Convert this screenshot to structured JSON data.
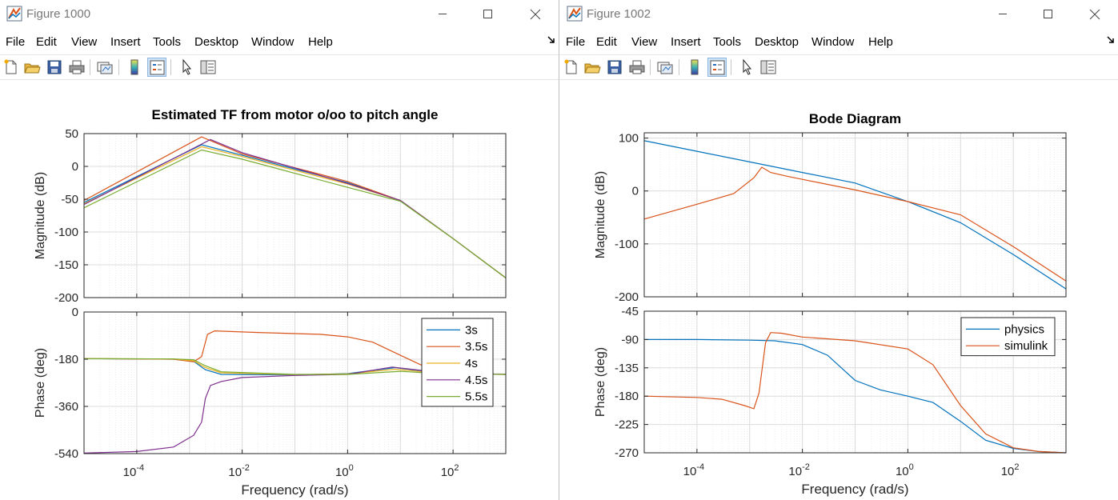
{
  "windows": [
    {
      "title": "Figure 1000",
      "menu": [
        "File",
        "Edit",
        "View",
        "Insert",
        "Tools",
        "Desktop",
        "Window",
        "Help"
      ],
      "toolbar": [
        "new-figure",
        "open-file",
        "save",
        "print",
        "link-plot",
        "insert-colorbar",
        "insert-legend",
        "edit-plot",
        "property-inspector"
      ]
    },
    {
      "title": "Figure 1002",
      "menu": [
        "File",
        "Edit",
        "View",
        "Insert",
        "Tools",
        "Desktop",
        "Window",
        "Help"
      ],
      "toolbar": [
        "new-figure",
        "open-file",
        "save",
        "print",
        "link-plot",
        "insert-colorbar",
        "insert-legend",
        "edit-plot",
        "property-inspector"
      ]
    }
  ],
  "colors": {
    "series": [
      "#0072BD",
      "#D95319",
      "#EDB120",
      "#7E2F8E",
      "#77AC30"
    ],
    "window_text": "#777777",
    "grid": "#e0e0e0"
  },
  "chart_data": [
    {
      "type": "line",
      "title": "Estimated TF from motor o/oo to pitch angle",
      "xlabel": "Frequency  (rad/s)",
      "xscale": "log",
      "xlim": [
        1e-05,
        1000
      ],
      "xticks": [
        0.0001,
        0.01,
        1,
        100
      ],
      "xtick_labels": [
        {
          "b": "10",
          "e": "-4"
        },
        {
          "b": "10",
          "e": "-2"
        },
        {
          "b": "10",
          "e": "0"
        },
        {
          "b": "10",
          "e": "2"
        }
      ],
      "grid": "minor",
      "legend": {
        "panel": "phase",
        "location": "top-right",
        "entries": [
          "3s",
          "3.5s",
          "4s",
          "4.5s",
          "5.5s"
        ]
      },
      "panels": [
        {
          "name": "magnitude",
          "ylabel": "Magnitude (dB)",
          "ylim": [
            -200,
            50
          ],
          "yticks": [
            50,
            0,
            -50,
            -100,
            -150,
            -200
          ],
          "series": [
            {
              "name": "3s",
              "x": [
                1e-05,
                0.0017,
                0.01,
                1,
                10,
                100,
                1000
              ],
              "y": [
                -55,
                33,
                17,
                -25,
                -52,
                -110,
                -170
              ]
            },
            {
              "name": "3.5s",
              "x": [
                1e-05,
                0.0017,
                0.01,
                1,
                10,
                100,
                1000
              ],
              "y": [
                -52,
                45,
                19,
                -23,
                -52,
                -110,
                -170
              ]
            },
            {
              "name": "4s",
              "x": [
                1e-05,
                0.0017,
                0.01,
                1,
                10,
                100,
                1000
              ],
              "y": [
                -57,
                30,
                15,
                -27,
                -52,
                -110,
                -170
              ]
            },
            {
              "name": "4.5s",
              "x": [
                1e-05,
                0.0025,
                0.01,
                1,
                10,
                100,
                1000
              ],
              "y": [
                -58,
                41,
                21,
                -26,
                -52,
                -110,
                -170
              ]
            },
            {
              "name": "5.5s",
              "x": [
                1e-05,
                0.0017,
                0.01,
                1,
                10,
                100,
                1000
              ],
              "y": [
                -63,
                25,
                11,
                -32,
                -53,
                -110,
                -170
              ]
            }
          ]
        },
        {
          "name": "phase",
          "ylabel": "Phase (deg)",
          "ylim": [
            -540,
            0
          ],
          "yticks": [
            0,
            -180,
            -360,
            -540
          ],
          "series": [
            {
              "name": "3s",
              "x": [
                1e-05,
                0.0005,
                0.0012,
                0.002,
                0.004,
                0.1,
                1,
                8,
                50,
                1000
              ],
              "y": [
                -178,
                -180,
                -188,
                -220,
                -238,
                -240,
                -235,
                -212,
                -232,
                -238
              ]
            },
            {
              "name": "3.5s",
              "x": [
                1e-05,
                0.0005,
                0.0012,
                0.0017,
                0.0022,
                0.003,
                0.02,
                0.3,
                1,
                3,
                10,
                30,
                100,
                1000
              ],
              "y": [
                -178,
                -180,
                -190,
                -170,
                -85,
                -72,
                -78,
                -85,
                -95,
                -115,
                -165,
                -210,
                -236,
                -238
              ]
            },
            {
              "name": "4s",
              "x": [
                1e-05,
                0.0005,
                0.0012,
                0.002,
                0.004,
                0.1,
                1,
                8,
                50,
                1000
              ],
              "y": [
                -178,
                -179,
                -186,
                -212,
                -232,
                -239,
                -236,
                -218,
                -233,
                -238
              ]
            },
            {
              "name": "4.5s",
              "x": [
                1e-05,
                0.0001,
                0.0005,
                0.0012,
                0.0017,
                0.002,
                0.0025,
                0.004,
                0.01,
                0.1,
                1,
                7,
                50,
                1000
              ],
              "y": [
                -538,
                -532,
                -515,
                -470,
                -420,
                -330,
                -280,
                -265,
                -250,
                -242,
                -238,
                -210,
                -230,
                -238
              ]
            },
            {
              "name": "5.5s",
              "x": [
                1e-05,
                0.0005,
                0.0012,
                0.002,
                0.004,
                0.1,
                1,
                10,
                50,
                1000
              ],
              "y": [
                -178,
                -179,
                -182,
                -205,
                -228,
                -238,
                -238,
                -226,
                -235,
                -238
              ]
            }
          ]
        }
      ]
    },
    {
      "type": "line",
      "title": "Bode Diagram",
      "xlabel": "Frequency  (rad/s)",
      "xscale": "log",
      "xlim": [
        1e-05,
        1000
      ],
      "xticks": [
        0.0001,
        0.01,
        1,
        100
      ],
      "xtick_labels": [
        {
          "b": "10",
          "e": "-4"
        },
        {
          "b": "10",
          "e": "-2"
        },
        {
          "b": "10",
          "e": "0"
        },
        {
          "b": "10",
          "e": "2"
        }
      ],
      "grid": "minor",
      "legend": {
        "panel": "phase",
        "location": "top-right",
        "entries": [
          "physics",
          "simulink"
        ]
      },
      "panels": [
        {
          "name": "magnitude",
          "ylabel": "Magnitude (dB)",
          "ylim": [
            -200,
            110
          ],
          "yticks": [
            100,
            0,
            -100,
            -200
          ],
          "series": [
            {
              "name": "physics",
              "x": [
                1e-05,
                0.0001,
                0.001,
                0.01,
                0.1,
                1,
                10,
                100,
                1000
              ],
              "y": [
                95,
                75,
                55,
                35,
                15,
                -20,
                -60,
                -120,
                -185
              ]
            },
            {
              "name": "simulink",
              "x": [
                1e-05,
                0.0001,
                0.0005,
                0.0012,
                0.0017,
                0.0025,
                0.005,
                0.01,
                0.1,
                1,
                10,
                100,
                1000
              ],
              "y": [
                -53,
                -25,
                -5,
                25,
                45,
                35,
                28,
                22,
                2,
                -20,
                -45,
                -105,
                -170
              ]
            }
          ]
        },
        {
          "name": "phase",
          "ylabel": "Phase (deg)",
          "ylim": [
            -270,
            -45
          ],
          "yticks": [
            -45,
            -90,
            -135,
            -180,
            -225,
            -270
          ],
          "series": [
            {
              "name": "physics",
              "x": [
                1e-05,
                0.0001,
                0.001,
                0.003,
                0.01,
                0.03,
                0.1,
                0.3,
                1,
                3,
                10,
                30,
                100,
                300,
                1000
              ],
              "y": [
                -90,
                -90,
                -91,
                -92,
                -98,
                -115,
                -155,
                -170,
                -180,
                -190,
                -220,
                -250,
                -263,
                -268,
                -270
              ]
            },
            {
              "name": "simulink",
              "x": [
                1e-05,
                0.0001,
                0.0003,
                0.0008,
                0.0012,
                0.0015,
                0.002,
                0.0025,
                0.004,
                0.01,
                0.1,
                1,
                3,
                10,
                30,
                100,
                300,
                1000
              ],
              "y": [
                -180,
                -182,
                -185,
                -195,
                -200,
                -175,
                -95,
                -79,
                -80,
                -86,
                -92,
                -105,
                -130,
                -195,
                -240,
                -262,
                -268,
                -270
              ]
            }
          ]
        }
      ]
    }
  ]
}
